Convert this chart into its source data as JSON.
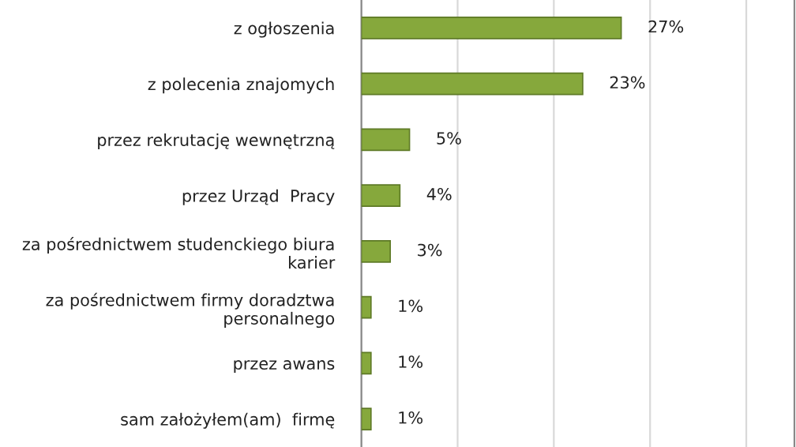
{
  "chart_data": {
    "type": "bar",
    "orientation": "horizontal",
    "categories": [
      "z ogłoszenia",
      "z polecenia znajomych",
      "przez rekrutację wewnętrzną",
      "przez Urząd  Pracy",
      "za pośrednictwem studenckiego biura karier",
      "za pośrednictwem firmy doradztwa personalnego",
      "przez awans",
      "sam założyłem(am)  firmę"
    ],
    "values": [
      27,
      23,
      5,
      4,
      3,
      1,
      1,
      1
    ],
    "value_labels": [
      "27%",
      "23%",
      "5%",
      "4%",
      "3%",
      "1%",
      "1%",
      "1%"
    ],
    "color": "#86a83c",
    "xlim": [
      0,
      45
    ],
    "xticks": [
      {
        "value": 0,
        "label": null
      },
      {
        "value": 10,
        "label": null
      },
      {
        "value": 20,
        "label": null
      },
      {
        "value": 30,
        "label": null
      },
      {
        "value": 40,
        "label": null
      }
    ],
    "grid": "x"
  }
}
